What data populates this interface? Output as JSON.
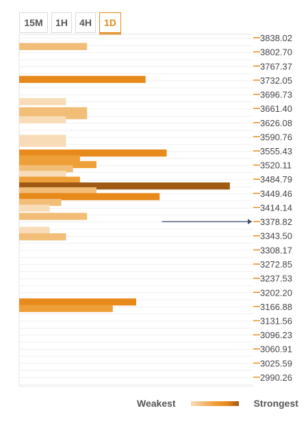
{
  "tabs": [
    {
      "label": "15M",
      "active": false
    },
    {
      "label": "1H",
      "active": false
    },
    {
      "label": "4H",
      "active": false
    },
    {
      "label": "1D",
      "active": true
    }
  ],
  "legend": {
    "weakest": "Weakest",
    "strongest": "Strongest"
  },
  "colors": {
    "accent": "#e8891c",
    "strength": {
      "1": "#f7dcb7",
      "2": "#f2bd77",
      "3": "#ee9f37",
      "4": "#e8891c",
      "5": "#a05a14"
    },
    "price_marker": "#3a4e6b",
    "grid": "#e6e6e6"
  },
  "chart_data": {
    "type": "bar",
    "orientation": "horizontal",
    "title": "",
    "xlabel": "",
    "ylabel": "",
    "ylim": [
      2990.26,
      3838.02
    ],
    "y_ticks": [
      "3838.02",
      "3802.70",
      "3767.37",
      "3732.05",
      "3696.73",
      "3661.40",
      "3626.08",
      "3590.76",
      "3555.43",
      "3520.11",
      "3484.79",
      "3449.46",
      "3414.14",
      "3378.82",
      "3343.50",
      "3308.17",
      "3272.85",
      "3237.53",
      "3202.20",
      "3166.88",
      "3131.56",
      "3096.23",
      "3060.91",
      "3025.59",
      "2990.26"
    ],
    "xlim": [
      0,
      100
    ],
    "current_price": 3378.8,
    "legend_placement": "bottom-right",
    "bars": [
      {
        "price": 3816.0,
        "value": 29,
        "strength": 2
      },
      {
        "price": 3733.9,
        "value": 54,
        "strength": 4
      },
      {
        "price": 3678.3,
        "value": 20,
        "strength": 1
      },
      {
        "price": 3655.7,
        "value": 29,
        "strength": 2
      },
      {
        "price": 3643.4,
        "value": 29,
        "strength": 2
      },
      {
        "price": 3633.1,
        "value": 20,
        "strength": 1
      },
      {
        "price": 3586.9,
        "value": 20,
        "strength": 1
      },
      {
        "price": 3574.6,
        "value": 20,
        "strength": 1
      },
      {
        "price": 3550.0,
        "value": 63,
        "strength": 4
      },
      {
        "price": 3535.6,
        "value": 26,
        "strength": 3
      },
      {
        "price": 3521.3,
        "value": 33,
        "strength": 3
      },
      {
        "price": 3511.0,
        "value": 23,
        "strength": 2
      },
      {
        "price": 3496.6,
        "value": 20,
        "strength": 1
      },
      {
        "price": 3482.3,
        "value": 26,
        "strength": 3
      },
      {
        "price": 3467.9,
        "value": 90,
        "strength": 5
      },
      {
        "price": 3455.6,
        "value": 33,
        "strength": 2
      },
      {
        "price": 3441.2,
        "value": 60,
        "strength": 4
      },
      {
        "price": 3426.9,
        "value": 18,
        "strength": 2
      },
      {
        "price": 3412.5,
        "value": 13,
        "strength": 1
      },
      {
        "price": 3392.0,
        "value": 29,
        "strength": 2
      },
      {
        "price": 3357.0,
        "value": 13,
        "strength": 1
      },
      {
        "price": 3341.0,
        "value": 20,
        "strength": 2
      },
      {
        "price": 3178.3,
        "value": 50,
        "strength": 4
      },
      {
        "price": 3162.0,
        "value": 40,
        "strength": 3
      }
    ]
  }
}
